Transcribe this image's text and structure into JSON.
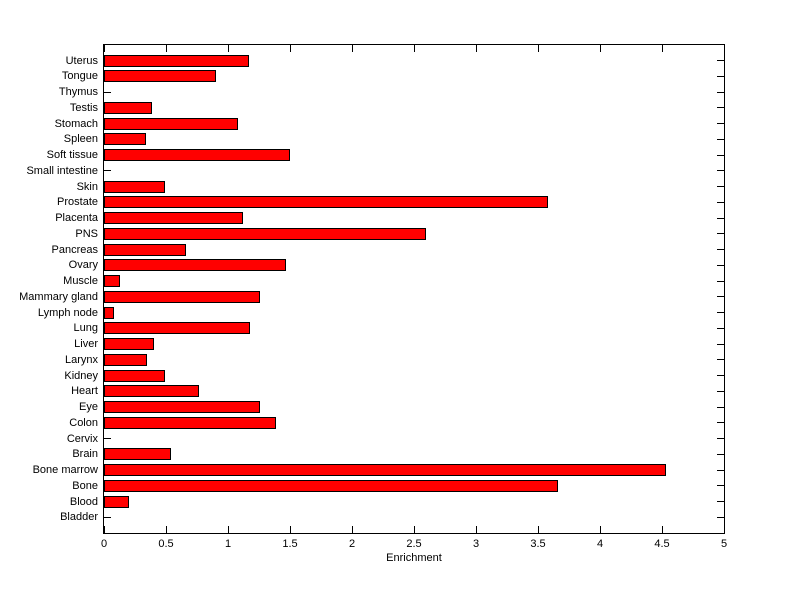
{
  "chart_data": {
    "type": "bar",
    "orientation": "horizontal",
    "title": "",
    "xlabel": "Enrichment",
    "ylabel": "",
    "xlim": [
      0,
      5
    ],
    "xticks": [
      0,
      0.5,
      1,
      1.5,
      2,
      2.5,
      3,
      3.5,
      4,
      4.5,
      5
    ],
    "xtick_labels": [
      "0",
      "0.5",
      "1",
      "1.5",
      "2",
      "2.5",
      "3",
      "3.5",
      "4",
      "4.5",
      "5"
    ],
    "grid": false,
    "legend": null,
    "bar_color": "#ff0000",
    "bar_edge_color": "#000000",
    "background_color": "#ffffff",
    "categories_top_to_bottom": [
      "Uterus",
      "Tongue",
      "Thymus",
      "Testis",
      "Stomach",
      "Spleen",
      "Soft tissue",
      "Small intestine",
      "Skin",
      "Prostate",
      "Placenta",
      "PNS",
      "Pancreas",
      "Ovary",
      "Muscle",
      "Mammary gland",
      "Lymph node",
      "Lung",
      "Liver",
      "Larynx",
      "Kidney",
      "Heart",
      "Eye",
      "Colon",
      "Cervix",
      "Brain",
      "Bone marrow",
      "Bone",
      "Blood",
      "Bladder"
    ],
    "values_top_to_bottom": [
      1.17,
      0.9,
      0,
      0.39,
      1.08,
      0.34,
      1.5,
      0,
      0.49,
      3.58,
      1.12,
      2.6,
      0.66,
      1.47,
      0.13,
      1.26,
      0.08,
      1.18,
      0.4,
      0.35,
      0.49,
      0.77,
      1.26,
      1.39,
      0,
      0.54,
      4.53,
      3.66,
      0.2,
      0
    ]
  }
}
